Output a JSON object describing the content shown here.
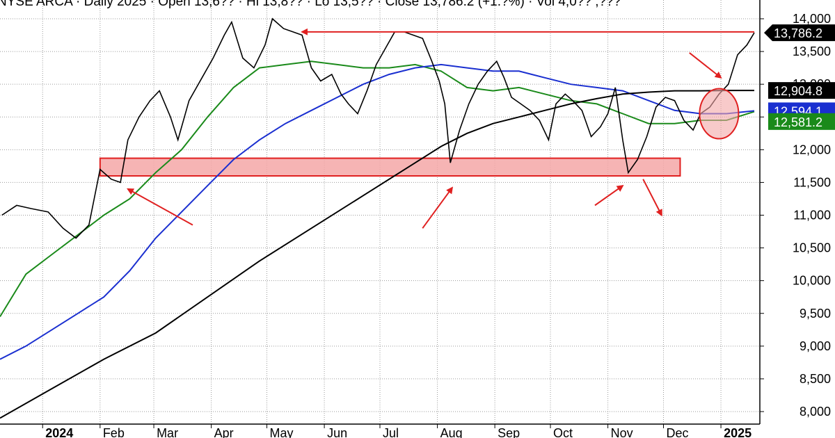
{
  "header": {
    "title": "NYSE ARCA · Daily 2025 · Open 13,6?? · Hi 13,8?? · Lo 13,5?? · Close 13,786.2 (+1.?%) · Vol 4,0?? ,???"
  },
  "chart_data": {
    "type": "line",
    "title": "",
    "xlabel": "",
    "ylabel": "",
    "ylim": [
      7850,
      14250
    ],
    "grid": true,
    "yticks": [
      8000,
      8500,
      9000,
      9500,
      10000,
      10500,
      11000,
      11500,
      12000,
      12500,
      13000,
      13500,
      14000
    ],
    "ytick_labels": [
      "8,000",
      "8,500",
      "9,000",
      "9,500",
      "10,000",
      "10,500",
      "11,000",
      "11,500",
      "12,000",
      "12,500",
      "13,000",
      "13,500",
      "14,000"
    ],
    "xticks": [
      {
        "label": "2024",
        "bold": true,
        "x": "2024-01-01"
      },
      {
        "label": "Feb",
        "bold": false,
        "x": "2024-02-01"
      },
      {
        "label": "Mar",
        "bold": false,
        "x": "2024-03-01"
      },
      {
        "label": "Apr",
        "bold": false,
        "x": "2024-04-01"
      },
      {
        "label": "May",
        "bold": false,
        "x": "2024-05-01"
      },
      {
        "label": "Jun",
        "bold": false,
        "x": "2024-06-01"
      },
      {
        "label": "Jul",
        "bold": false,
        "x": "2024-07-01"
      },
      {
        "label": "Aug",
        "bold": false,
        "x": "2024-08-01"
      },
      {
        "label": "Sep",
        "bold": false,
        "x": "2024-09-01"
      },
      {
        "label": "Oct",
        "bold": false,
        "x": "2024-10-01"
      },
      {
        "label": "Nov",
        "bold": false,
        "x": "2024-11-01"
      },
      {
        "label": "Dec",
        "bold": false,
        "x": "2024-12-01"
      },
      {
        "label": "2025",
        "bold": true,
        "x": "2025-01-01"
      }
    ],
    "xrange": [
      "2023-12-09",
      "2025-01-22"
    ],
    "price": {
      "name": "",
      "color": "#000000",
      "points": [
        [
          "2023-12-10",
          11000
        ],
        [
          "2023-12-18",
          11150
        ],
        [
          "2023-12-26",
          11100
        ],
        [
          "2024-01-04",
          11050
        ],
        [
          "2024-01-12",
          10800
        ],
        [
          "2024-01-19",
          10650
        ],
        [
          "2024-01-26",
          10850
        ],
        [
          "2024-02-01",
          11700
        ],
        [
          "2024-02-07",
          11550
        ],
        [
          "2024-02-12",
          11500
        ],
        [
          "2024-02-16",
          12150
        ],
        [
          "2024-02-22",
          12500
        ],
        [
          "2024-02-28",
          12750
        ],
        [
          "2024-03-04",
          12900
        ],
        [
          "2024-03-10",
          12500
        ],
        [
          "2024-03-14",
          12150
        ],
        [
          "2024-03-20",
          12750
        ],
        [
          "2024-03-27",
          13100
        ],
        [
          "2024-04-02",
          13400
        ],
        [
          "2024-04-08",
          13750
        ],
        [
          "2024-04-12",
          13950
        ],
        [
          "2024-04-18",
          13400
        ],
        [
          "2024-04-24",
          13250
        ],
        [
          "2024-04-30",
          13600
        ],
        [
          "2024-05-04",
          14000
        ],
        [
          "2024-05-10",
          13850
        ],
        [
          "2024-05-15",
          13800
        ],
        [
          "2024-05-20",
          13750
        ],
        [
          "2024-05-25",
          13250
        ],
        [
          "2024-05-30",
          13050
        ],
        [
          "2024-06-05",
          13150
        ],
        [
          "2024-06-10",
          12850
        ],
        [
          "2024-06-14",
          12700
        ],
        [
          "2024-06-19",
          12550
        ],
        [
          "2024-06-24",
          12900
        ],
        [
          "2024-06-29",
          13300
        ],
        [
          "2024-07-04",
          13550
        ],
        [
          "2024-07-09",
          13800
        ],
        [
          "2024-07-14",
          13800
        ],
        [
          "2024-07-19",
          13750
        ],
        [
          "2024-07-24",
          13700
        ],
        [
          "2024-07-29",
          13350
        ],
        [
          "2024-08-02",
          13050
        ],
        [
          "2024-08-05",
          12700
        ],
        [
          "2024-08-08",
          11800
        ],
        [
          "2024-08-13",
          12300
        ],
        [
          "2024-08-18",
          12700
        ],
        [
          "2024-08-23",
          13000
        ],
        [
          "2024-08-28",
          13200
        ],
        [
          "2024-09-02",
          13350
        ],
        [
          "2024-09-06",
          13100
        ],
        [
          "2024-09-10",
          12800
        ],
        [
          "2024-09-15",
          12700
        ],
        [
          "2024-09-20",
          12600
        ],
        [
          "2024-09-25",
          12450
        ],
        [
          "2024-09-30",
          12150
        ],
        [
          "2024-10-04",
          12700
        ],
        [
          "2024-10-09",
          12850
        ],
        [
          "2024-10-13",
          12750
        ],
        [
          "2024-10-18",
          12600
        ],
        [
          "2024-10-23",
          12200
        ],
        [
          "2024-10-28",
          12350
        ],
        [
          "2024-11-01",
          12550
        ],
        [
          "2024-11-05",
          12950
        ],
        [
          "2024-11-09",
          12150
        ],
        [
          "2024-11-12",
          11650
        ],
        [
          "2024-11-17",
          11850
        ],
        [
          "2024-11-22",
          12200
        ],
        [
          "2024-11-27",
          12650
        ],
        [
          "2024-12-02",
          12800
        ],
        [
          "2024-12-07",
          12750
        ],
        [
          "2024-12-12",
          12450
        ],
        [
          "2024-12-17",
          12300
        ],
        [
          "2024-12-21",
          12550
        ],
        [
          "2024-12-26",
          12650
        ],
        [
          "2024-12-31",
          12850
        ],
        [
          "2025-01-05",
          13000
        ],
        [
          "2025-01-10",
          13450
        ],
        [
          "2025-01-15",
          13600
        ],
        [
          "2025-01-19",
          13786.2
        ]
      ]
    },
    "series": [
      {
        "name": "",
        "color": "#1a8a1a",
        "label": "12,581.2",
        "points": [
          [
            "2023-12-09",
            9450
          ],
          [
            "2023-12-23",
            10100
          ],
          [
            "2024-01-06",
            10400
          ],
          [
            "2024-01-20",
            10700
          ],
          [
            "2024-02-03",
            11000
          ],
          [
            "2024-02-17",
            11250
          ],
          [
            "2024-03-02",
            11650
          ],
          [
            "2024-03-16",
            12000
          ],
          [
            "2024-03-30",
            12500
          ],
          [
            "2024-04-13",
            12950
          ],
          [
            "2024-04-27",
            13250
          ],
          [
            "2024-05-11",
            13300
          ],
          [
            "2024-05-25",
            13350
          ],
          [
            "2024-06-08",
            13300
          ],
          [
            "2024-06-22",
            13250
          ],
          [
            "2024-07-06",
            13250
          ],
          [
            "2024-07-20",
            13300
          ],
          [
            "2024-08-03",
            13200
          ],
          [
            "2024-08-17",
            12950
          ],
          [
            "2024-08-31",
            12900
          ],
          [
            "2024-09-14",
            12950
          ],
          [
            "2024-09-28",
            12850
          ],
          [
            "2024-10-12",
            12750
          ],
          [
            "2024-10-26",
            12700
          ],
          [
            "2024-11-09",
            12550
          ],
          [
            "2024-11-23",
            12400
          ],
          [
            "2024-12-07",
            12400
          ],
          [
            "2024-12-21",
            12450
          ],
          [
            "2025-01-04",
            12450
          ],
          [
            "2025-01-19",
            12581.2
          ]
        ]
      },
      {
        "name": "",
        "color": "#1a2fd0",
        "label": "12,594.1",
        "points": [
          [
            "2023-12-09",
            8800
          ],
          [
            "2023-12-23",
            9000
          ],
          [
            "2024-01-06",
            9250
          ],
          [
            "2024-01-20",
            9500
          ],
          [
            "2024-02-03",
            9750
          ],
          [
            "2024-02-17",
            10150
          ],
          [
            "2024-03-02",
            10650
          ],
          [
            "2024-03-16",
            11050
          ],
          [
            "2024-03-30",
            11450
          ],
          [
            "2024-04-13",
            11850
          ],
          [
            "2024-04-27",
            12150
          ],
          [
            "2024-05-11",
            12400
          ],
          [
            "2024-05-25",
            12600
          ],
          [
            "2024-06-08",
            12800
          ],
          [
            "2024-06-22",
            13000
          ],
          [
            "2024-07-06",
            13150
          ],
          [
            "2024-07-20",
            13250
          ],
          [
            "2024-08-03",
            13300
          ],
          [
            "2024-08-17",
            13250
          ],
          [
            "2024-08-31",
            13200
          ],
          [
            "2024-09-14",
            13200
          ],
          [
            "2024-09-28",
            13100
          ],
          [
            "2024-10-12",
            13000
          ],
          [
            "2024-10-26",
            12950
          ],
          [
            "2024-11-09",
            12900
          ],
          [
            "2024-11-23",
            12750
          ],
          [
            "2024-12-07",
            12600
          ],
          [
            "2024-12-21",
            12550
          ],
          [
            "2025-01-04",
            12550
          ],
          [
            "2025-01-19",
            12594.1
          ]
        ]
      },
      {
        "name": "",
        "color": "#000000",
        "label": "12,904.8",
        "points": [
          [
            "2023-12-09",
            7900
          ],
          [
            "2024-01-06",
            8350
          ],
          [
            "2024-02-03",
            8800
          ],
          [
            "2024-03-02",
            9200
          ],
          [
            "2024-03-30",
            9750
          ],
          [
            "2024-04-27",
            10300
          ],
          [
            "2024-05-25",
            10800
          ],
          [
            "2024-06-22",
            11300
          ],
          [
            "2024-07-20",
            11800
          ],
          [
            "2024-08-03",
            12050
          ],
          [
            "2024-08-17",
            12250
          ],
          [
            "2024-08-31",
            12400
          ],
          [
            "2024-09-14",
            12500
          ],
          [
            "2024-09-28",
            12600
          ],
          [
            "2024-10-12",
            12700
          ],
          [
            "2024-10-26",
            12780
          ],
          [
            "2024-11-09",
            12850
          ],
          [
            "2024-11-23",
            12880
          ],
          [
            "2024-12-07",
            12900
          ],
          [
            "2024-12-21",
            12900
          ],
          [
            "2025-01-04",
            12905
          ],
          [
            "2025-01-19",
            12904.8
          ]
        ]
      }
    ],
    "last_price_label": "13,786.2",
    "annotations": {
      "resistance_line": {
        "from": "2024-05-20",
        "to": "2025-01-19",
        "y": 13800,
        "color": "#e02020"
      },
      "support_zone": {
        "from": "2024-02-01",
        "to": "2024-12-10",
        "y1": 11600,
        "y2": 11870,
        "fill": "#f4a7a7",
        "stroke": "#e02020"
      },
      "circle": {
        "cx": "2024-12-31",
        "cy": 12550,
        "color": "#e02020"
      },
      "arrow_color": "#e02020"
    }
  }
}
